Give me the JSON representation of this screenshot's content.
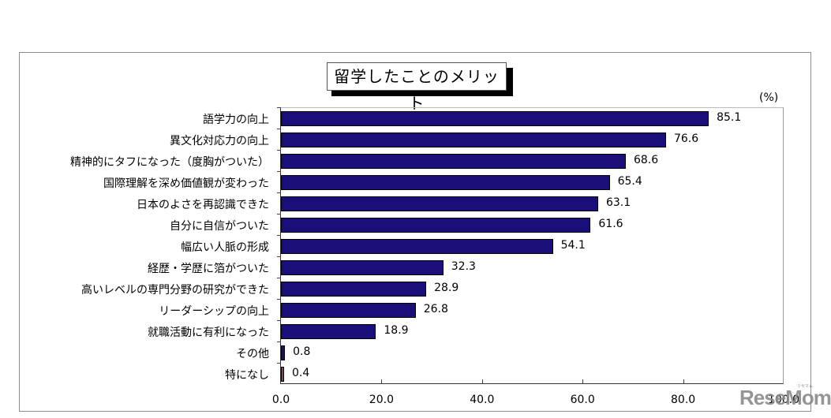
{
  "chart_data": {
    "type": "bar",
    "orientation": "horizontal",
    "title": "留学したことのメリット",
    "unit_label": "(%)",
    "xlabel": "",
    "ylabel": "",
    "xlim": [
      0,
      100
    ],
    "x_ticks": [
      "0.0",
      "20.0",
      "40.0",
      "60.0",
      "80.0",
      "100.0"
    ],
    "grid": false,
    "legend": null,
    "categories": [
      "語学力の向上",
      "異文化対応力の向上",
      "精神的にタフになった（度胸がついた）",
      "国際理解を深め価値観が変わった",
      "日本のよさを再認識できた",
      "自分に自信がついた",
      "幅広い人脈の形成",
      "経歴・学歴に箔がついた",
      "高いレベルの専門分野の研究ができた",
      "リーダーシップの向上",
      "就職活動に有利になった",
      "その他",
      "特になし"
    ],
    "values": [
      85.1,
      76.6,
      68.6,
      65.4,
      63.1,
      61.6,
      54.1,
      32.3,
      28.9,
      26.8,
      18.9,
      0.8,
      0.4
    ],
    "value_labels": [
      "85.1",
      "76.6",
      "68.6",
      "65.4",
      "63.1",
      "61.6",
      "54.1",
      "32.3",
      "28.9",
      "26.8",
      "18.9",
      "0.8",
      "0.4"
    ],
    "colors": {
      "bar": "#1a0f78",
      "bar_none": "#7a4c56"
    }
  },
  "watermark": {
    "text": "ReseMom",
    "sub": "リセマム"
  }
}
